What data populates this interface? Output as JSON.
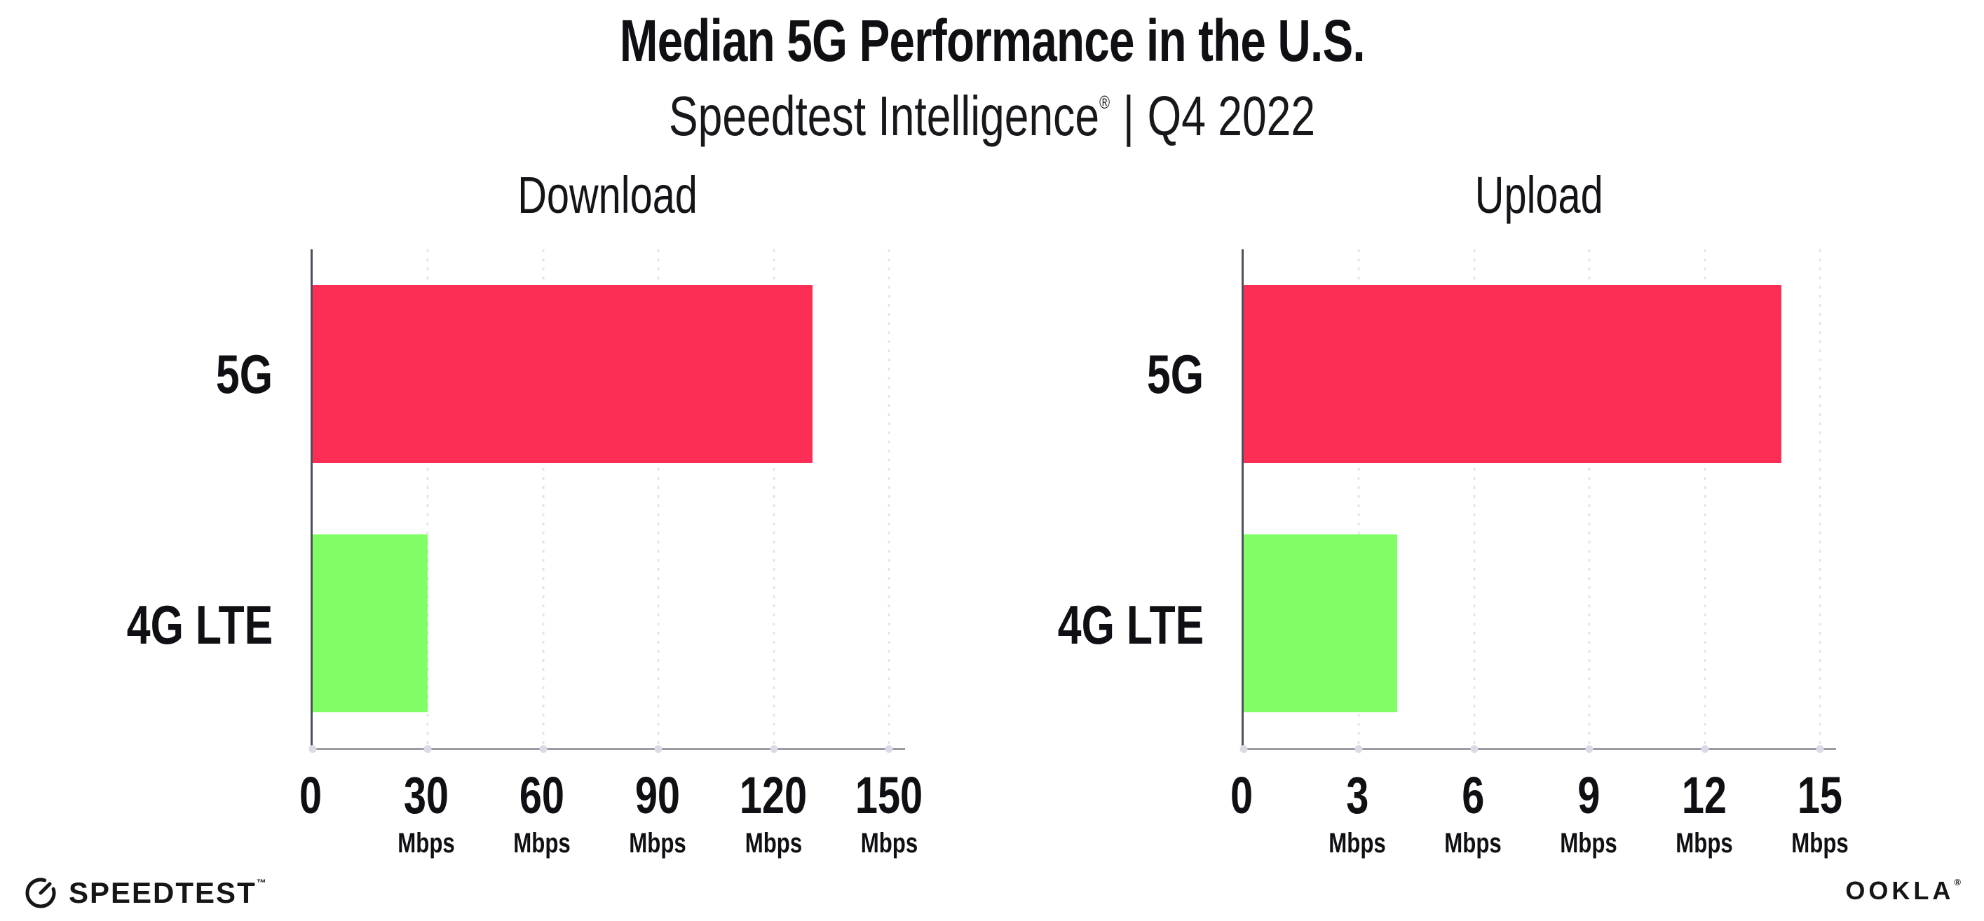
{
  "header": {
    "title": "Median 5G Performance in the U.S.",
    "subtitle_brand": "Speedtest Intelligence",
    "subtitle_reg_mark": "®",
    "subtitle_separator": "|",
    "subtitle_period": "Q4 2022"
  },
  "footer": {
    "speedtest_logo_text": "SPEEDTEST",
    "speedtest_trademark": "™",
    "ookla_logo_text": "OOKLA",
    "ookla_reg_mark": "®"
  },
  "colors": {
    "bar_5g": "#FD2E56",
    "bar_4g_lte": "#81FD66",
    "gridline": "#E4E4EE",
    "y_axis": "#50505A",
    "x_axis": "#9B9BA3",
    "tick_dot": "#DBDBE5",
    "text": "#101014"
  },
  "chart_data": [
    {
      "type": "bar",
      "orientation": "horizontal",
      "title": "Download",
      "categories": [
        "5G",
        "4G LTE"
      ],
      "values": [
        130,
        30
      ],
      "unit": "Mbps",
      "xlim": [
        0,
        150
      ],
      "xticks": [
        0,
        30,
        60,
        90,
        120,
        150
      ],
      "tick_unit_label": "Mbps",
      "grid": "vertical-dotted",
      "legend": "none",
      "bar_colors": [
        "#FD2E56",
        "#81FD66"
      ]
    },
    {
      "type": "bar",
      "orientation": "horizontal",
      "title": "Upload",
      "categories": [
        "5G",
        "4G LTE"
      ],
      "values": [
        14,
        4
      ],
      "unit": "Mbps",
      "xlim": [
        0,
        15
      ],
      "xticks": [
        0,
        3,
        6,
        9,
        12,
        15
      ],
      "tick_unit_label": "Mbps",
      "grid": "vertical-dotted",
      "legend": "none",
      "bar_colors": [
        "#FD2E56",
        "#81FD66"
      ]
    }
  ]
}
